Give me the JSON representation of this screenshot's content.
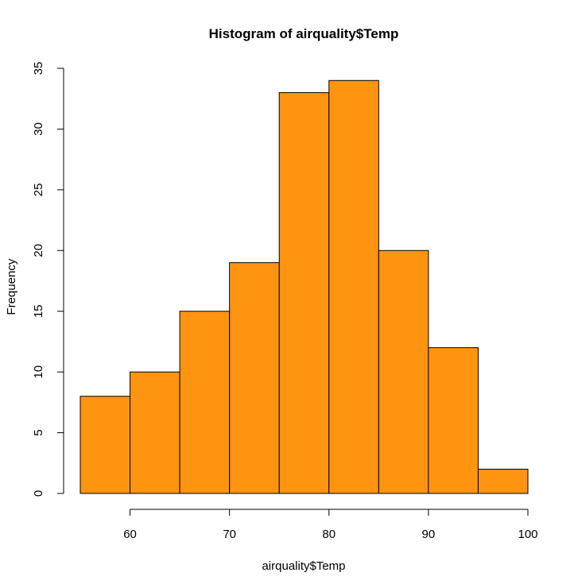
{
  "chart_data": {
    "type": "bar",
    "subtype": "histogram",
    "title": "Histogram of airquality$Temp",
    "xlabel": "airquality$Temp",
    "ylabel": "Frequency",
    "bins": [
      {
        "from": 55,
        "to": 60,
        "count": 8
      },
      {
        "from": 60,
        "to": 65,
        "count": 10
      },
      {
        "from": 65,
        "to": 70,
        "count": 15
      },
      {
        "from": 70,
        "to": 75,
        "count": 19
      },
      {
        "from": 75,
        "to": 80,
        "count": 33
      },
      {
        "from": 80,
        "to": 85,
        "count": 34
      },
      {
        "from": 85,
        "to": 90,
        "count": 20
      },
      {
        "from": 90,
        "to": 95,
        "count": 12
      },
      {
        "from": 95,
        "to": 100,
        "count": 2
      }
    ],
    "xlim": [
      55,
      100
    ],
    "ylim": [
      0,
      35
    ],
    "x_ticks": [
      60,
      70,
      80,
      90,
      100
    ],
    "y_ticks": [
      0,
      5,
      10,
      15,
      20,
      25,
      30,
      35
    ],
    "grid": false,
    "legend": "none",
    "bar_color": "#FF9410",
    "bar_border_color": "#000000"
  }
}
